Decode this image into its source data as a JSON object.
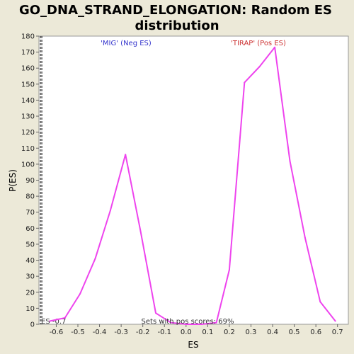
{
  "chart_data": {
    "type": "line",
    "title_lines": [
      "GO_DNA_STRAND_ELONGATION: Random ES",
      "distribution"
    ],
    "xlabel": "ES",
    "ylabel": "P(ES)",
    "xlim": [
      -0.68,
      0.75
    ],
    "ylim": [
      0,
      180
    ],
    "xticks": [
      -0.6,
      -0.5,
      -0.4,
      -0.3,
      -0.2,
      -0.1,
      0.0,
      0.1,
      0.2,
      0.3,
      0.4,
      0.5,
      0.6,
      0.7
    ],
    "xtick_labels": [
      "-0.6",
      "-0.5",
      "-0.4",
      "-0.3",
      "-0.2",
      "-0.1",
      "0.0",
      "0.1",
      "0.2",
      "0.3",
      "0.4",
      "0.5",
      "0.6",
      "0.7"
    ],
    "yticks": [
      0,
      10,
      20,
      30,
      40,
      50,
      60,
      70,
      80,
      90,
      100,
      110,
      120,
      130,
      140,
      150,
      160,
      170,
      180
    ],
    "grid": false,
    "series": [
      {
        "color": "#EE44EE",
        "points": [
          [
            -0.63,
            2
          ],
          [
            -0.56,
            4
          ],
          [
            -0.49,
            19
          ],
          [
            -0.42,
            41
          ],
          [
            -0.35,
            71
          ],
          [
            -0.28,
            106
          ],
          [
            -0.21,
            58
          ],
          [
            -0.14,
            7
          ],
          [
            -0.07,
            1
          ],
          [
            0.0,
            0
          ],
          [
            0.07,
            0
          ],
          [
            0.14,
            1
          ],
          [
            0.2,
            34
          ],
          [
            0.27,
            151
          ],
          [
            0.34,
            161
          ],
          [
            0.41,
            173
          ],
          [
            0.48,
            102
          ],
          [
            0.55,
            54
          ],
          [
            0.62,
            14
          ],
          [
            0.69,
            2
          ]
        ]
      }
    ],
    "vline": {
      "x": -0.67,
      "label": "ES -0.7"
    },
    "annotations": [
      {
        "text": "'MIG' (Neg ES)",
        "color": "#3333CC"
      },
      {
        "text": "'TIRAP' (Pos ES)",
        "color": "#CC3333"
      },
      {
        "text": "Sets with pos scores: 69%",
        "color": "#333333"
      }
    ],
    "colors": {
      "plot_bg": "#FFFFFF",
      "page_bg": "#ECE9D8",
      "line": "#EE44EE"
    }
  }
}
